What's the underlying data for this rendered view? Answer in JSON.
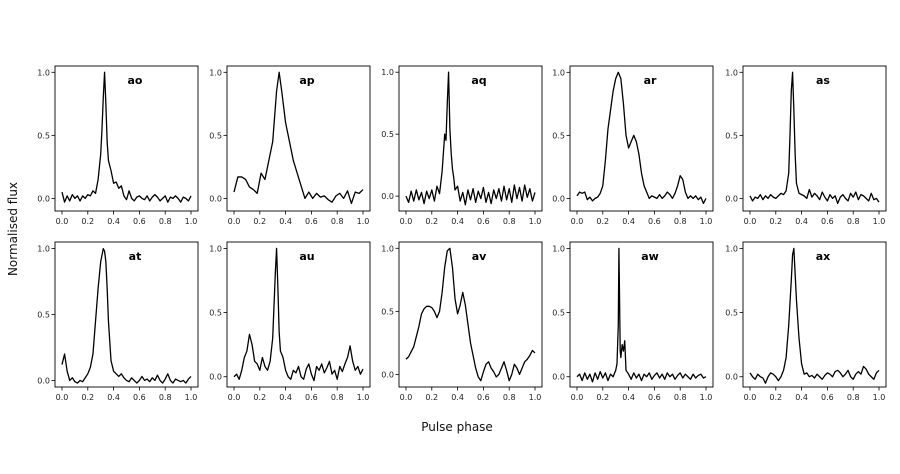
{
  "chart_data": {
    "type": "line",
    "xlabel": "Pulse phase",
    "ylabel": "Normalised flux",
    "xlim": [
      0,
      1
    ],
    "xticks": [
      "0.0",
      "0.2",
      "0.4",
      "0.6",
      "0.8",
      "1.0"
    ],
    "yticks": [
      "0.0",
      "0.5",
      "1.0"
    ],
    "grid": false,
    "line_color": "#000000",
    "panels": [
      {
        "label": "ao",
        "ylim": [
          -0.1,
          1.05
        ],
        "x": [
          0.0,
          0.02,
          0.04,
          0.06,
          0.08,
          0.1,
          0.12,
          0.14,
          0.16,
          0.18,
          0.2,
          0.22,
          0.24,
          0.26,
          0.28,
          0.3,
          0.31,
          0.32,
          0.33,
          0.34,
          0.35,
          0.36,
          0.38,
          0.4,
          0.42,
          0.44,
          0.46,
          0.48,
          0.5,
          0.52,
          0.54,
          0.56,
          0.58,
          0.6,
          0.62,
          0.64,
          0.66,
          0.68,
          0.7,
          0.72,
          0.74,
          0.76,
          0.78,
          0.8,
          0.82,
          0.84,
          0.86,
          0.88,
          0.9,
          0.92,
          0.94,
          0.96,
          0.98,
          1.0
        ],
        "y": [
          0.05,
          -0.03,
          0.02,
          -0.02,
          0.03,
          0.0,
          0.02,
          -0.02,
          0.02,
          0.0,
          0.03,
          0.02,
          0.06,
          0.04,
          0.15,
          0.35,
          0.55,
          0.8,
          1.0,
          0.75,
          0.45,
          0.3,
          0.22,
          0.12,
          0.13,
          0.08,
          0.1,
          0.02,
          -0.01,
          0.06,
          0.0,
          -0.02,
          0.01,
          0.02,
          0.0,
          -0.01,
          0.02,
          -0.02,
          0.01,
          0.03,
          0.01,
          -0.02,
          0.0,
          0.02,
          -0.03,
          0.01,
          0.0,
          0.02,
          0.0,
          -0.03,
          0.01,
          0.0,
          -0.02,
          0.02
        ]
      },
      {
        "label": "ap",
        "ylim": [
          -0.1,
          1.05
        ],
        "x": [
          0.0,
          0.03,
          0.06,
          0.09,
          0.12,
          0.15,
          0.18,
          0.21,
          0.24,
          0.27,
          0.3,
          0.33,
          0.35,
          0.37,
          0.4,
          0.43,
          0.46,
          0.49,
          0.52,
          0.55,
          0.58,
          0.61,
          0.64,
          0.67,
          0.7,
          0.73,
          0.76,
          0.79,
          0.82,
          0.85,
          0.88,
          0.91,
          0.94,
          0.97,
          1.0
        ],
        "y": [
          0.05,
          0.17,
          0.17,
          0.15,
          0.09,
          0.07,
          0.04,
          0.2,
          0.15,
          0.3,
          0.45,
          0.85,
          1.0,
          0.85,
          0.6,
          0.45,
          0.3,
          0.2,
          0.1,
          0.0,
          0.05,
          0.0,
          0.04,
          0.01,
          0.02,
          -0.01,
          -0.03,
          0.02,
          0.04,
          0.0,
          0.06,
          -0.04,
          0.05,
          0.04,
          0.07
        ]
      },
      {
        "label": "aq",
        "ylim": [
          -0.12,
          1.05
        ],
        "x": [
          0.0,
          0.02,
          0.04,
          0.06,
          0.08,
          0.1,
          0.12,
          0.14,
          0.16,
          0.18,
          0.2,
          0.22,
          0.24,
          0.26,
          0.28,
          0.3,
          0.31,
          0.32,
          0.33,
          0.34,
          0.35,
          0.36,
          0.37,
          0.38,
          0.4,
          0.42,
          0.44,
          0.46,
          0.48,
          0.5,
          0.52,
          0.54,
          0.56,
          0.58,
          0.6,
          0.62,
          0.64,
          0.66,
          0.68,
          0.7,
          0.72,
          0.74,
          0.76,
          0.78,
          0.8,
          0.82,
          0.84,
          0.86,
          0.88,
          0.9,
          0.92,
          0.94,
          0.96,
          0.98,
          1.0
        ],
        "y": [
          0.0,
          -0.05,
          0.04,
          -0.04,
          0.05,
          -0.03,
          0.03,
          -0.06,
          0.04,
          -0.02,
          0.05,
          -0.04,
          0.08,
          0.02,
          0.2,
          0.5,
          0.45,
          0.75,
          1.0,
          0.55,
          0.35,
          0.22,
          0.15,
          0.05,
          0.08,
          -0.04,
          0.03,
          -0.07,
          0.05,
          -0.03,
          0.06,
          -0.05,
          0.04,
          -0.02,
          0.07,
          -0.05,
          0.03,
          -0.06,
          0.05,
          -0.02,
          0.06,
          -0.04,
          0.08,
          -0.03,
          0.06,
          -0.05,
          0.09,
          -0.02,
          0.07,
          -0.04,
          0.09,
          -0.01,
          0.06,
          -0.04,
          0.03
        ]
      },
      {
        "label": "ar",
        "ylim": [
          -0.1,
          1.05
        ],
        "x": [
          0.0,
          0.02,
          0.04,
          0.06,
          0.08,
          0.1,
          0.12,
          0.14,
          0.16,
          0.18,
          0.2,
          0.22,
          0.24,
          0.26,
          0.28,
          0.3,
          0.32,
          0.34,
          0.36,
          0.38,
          0.4,
          0.42,
          0.44,
          0.46,
          0.48,
          0.5,
          0.52,
          0.54,
          0.56,
          0.58,
          0.6,
          0.62,
          0.64,
          0.66,
          0.68,
          0.7,
          0.72,
          0.74,
          0.76,
          0.78,
          0.8,
          0.82,
          0.84,
          0.86,
          0.88,
          0.9,
          0.92,
          0.94,
          0.96,
          0.98,
          1.0
        ],
        "y": [
          0.02,
          0.05,
          0.04,
          0.05,
          -0.01,
          0.01,
          -0.02,
          0.0,
          0.01,
          0.04,
          0.1,
          0.3,
          0.55,
          0.7,
          0.85,
          0.95,
          1.0,
          0.95,
          0.75,
          0.5,
          0.4,
          0.45,
          0.5,
          0.45,
          0.35,
          0.2,
          0.1,
          0.05,
          0.0,
          0.02,
          0.01,
          0.0,
          0.03,
          0.0,
          0.02,
          0.05,
          0.03,
          0.0,
          0.04,
          0.1,
          0.18,
          0.15,
          0.05,
          0.0,
          0.02,
          0.0,
          0.02,
          -0.01,
          0.01,
          -0.04,
          0.0
        ]
      },
      {
        "label": "as",
        "ylim": [
          -0.1,
          1.05
        ],
        "x": [
          0.0,
          0.02,
          0.04,
          0.06,
          0.08,
          0.1,
          0.12,
          0.14,
          0.16,
          0.18,
          0.2,
          0.22,
          0.24,
          0.26,
          0.28,
          0.3,
          0.31,
          0.32,
          0.33,
          0.34,
          0.35,
          0.36,
          0.38,
          0.4,
          0.42,
          0.44,
          0.46,
          0.48,
          0.5,
          0.52,
          0.54,
          0.56,
          0.58,
          0.6,
          0.62,
          0.64,
          0.66,
          0.68,
          0.7,
          0.72,
          0.74,
          0.76,
          0.78,
          0.8,
          0.82,
          0.84,
          0.86,
          0.88,
          0.9,
          0.92,
          0.94,
          0.96,
          0.98,
          1.0
        ],
        "y": [
          0.02,
          -0.02,
          0.01,
          0.0,
          0.03,
          -0.01,
          0.02,
          0.0,
          0.03,
          0.01,
          0.0,
          0.02,
          0.04,
          0.03,
          0.06,
          0.2,
          0.5,
          0.85,
          1.0,
          0.7,
          0.35,
          0.12,
          0.04,
          0.03,
          0.02,
          0.0,
          0.07,
          0.01,
          0.04,
          0.02,
          -0.01,
          0.05,
          0.01,
          -0.02,
          0.03,
          0.0,
          0.02,
          -0.04,
          0.01,
          0.03,
          0.0,
          -0.02,
          0.04,
          0.01,
          0.05,
          -0.01,
          0.03,
          0.02,
          0.0,
          -0.02,
          0.04,
          -0.01,
          0.0,
          -0.03
        ]
      },
      {
        "label": "at",
        "ylim": [
          -0.05,
          1.05
        ],
        "x": [
          0.0,
          0.02,
          0.04,
          0.06,
          0.08,
          0.1,
          0.12,
          0.14,
          0.16,
          0.18,
          0.2,
          0.22,
          0.24,
          0.26,
          0.28,
          0.3,
          0.32,
          0.33,
          0.34,
          0.35,
          0.36,
          0.38,
          0.4,
          0.42,
          0.44,
          0.46,
          0.48,
          0.5,
          0.52,
          0.54,
          0.56,
          0.58,
          0.6,
          0.62,
          0.64,
          0.66,
          0.68,
          0.7,
          0.72,
          0.74,
          0.76,
          0.78,
          0.8,
          0.82,
          0.84,
          0.86,
          0.88,
          0.9,
          0.92,
          0.94,
          0.96,
          0.98,
          1.0
        ],
        "y": [
          0.12,
          0.2,
          0.07,
          0.0,
          0.02,
          -0.01,
          -0.02,
          0.0,
          -0.01,
          0.02,
          0.05,
          0.1,
          0.2,
          0.45,
          0.7,
          0.9,
          1.0,
          0.98,
          0.9,
          0.7,
          0.45,
          0.15,
          0.07,
          0.05,
          0.03,
          0.05,
          0.02,
          0.0,
          -0.01,
          0.02,
          0.0,
          -0.02,
          0.0,
          0.03,
          0.0,
          0.01,
          -0.01,
          0.02,
          0.0,
          0.04,
          0.0,
          -0.02,
          0.01,
          0.05,
          0.0,
          -0.02,
          0.01,
          0.0,
          -0.01,
          0.0,
          -0.02,
          0.01,
          0.03
        ]
      },
      {
        "label": "au",
        "ylim": [
          -0.08,
          1.05
        ],
        "x": [
          0.0,
          0.02,
          0.04,
          0.06,
          0.08,
          0.1,
          0.12,
          0.14,
          0.16,
          0.18,
          0.2,
          0.22,
          0.24,
          0.26,
          0.28,
          0.3,
          0.31,
          0.32,
          0.33,
          0.34,
          0.35,
          0.36,
          0.38,
          0.4,
          0.42,
          0.44,
          0.46,
          0.48,
          0.5,
          0.52,
          0.54,
          0.56,
          0.58,
          0.6,
          0.62,
          0.64,
          0.66,
          0.68,
          0.7,
          0.72,
          0.74,
          0.76,
          0.78,
          0.8,
          0.82,
          0.84,
          0.86,
          0.88,
          0.9,
          0.92,
          0.94,
          0.96,
          0.98,
          1.0
        ],
        "y": [
          0.0,
          0.02,
          -0.02,
          0.05,
          0.15,
          0.2,
          0.33,
          0.25,
          0.12,
          0.1,
          0.05,
          0.15,
          0.08,
          0.05,
          0.12,
          0.3,
          0.55,
          0.8,
          1.0,
          0.7,
          0.35,
          0.2,
          0.15,
          0.05,
          0.0,
          -0.02,
          0.05,
          0.03,
          0.08,
          0.0,
          -0.02,
          0.06,
          0.1,
          0.02,
          -0.03,
          0.08,
          0.05,
          0.1,
          0.03,
          0.07,
          0.12,
          0.02,
          0.05,
          -0.02,
          0.08,
          0.04,
          0.1,
          0.15,
          0.24,
          0.12,
          0.05,
          0.08,
          0.02,
          0.06
        ]
      },
      {
        "label": "av",
        "ylim": [
          -0.1,
          1.05
        ],
        "x": [
          0.0,
          0.02,
          0.04,
          0.06,
          0.08,
          0.1,
          0.12,
          0.14,
          0.16,
          0.18,
          0.2,
          0.22,
          0.24,
          0.26,
          0.28,
          0.3,
          0.32,
          0.34,
          0.36,
          0.38,
          0.4,
          0.42,
          0.44,
          0.46,
          0.48,
          0.5,
          0.52,
          0.54,
          0.56,
          0.58,
          0.6,
          0.62,
          0.64,
          0.66,
          0.68,
          0.7,
          0.72,
          0.74,
          0.76,
          0.78,
          0.8,
          0.82,
          0.84,
          0.86,
          0.88,
          0.9,
          0.92,
          0.94,
          0.96,
          0.98,
          1.0
        ],
        "y": [
          0.12,
          0.14,
          0.18,
          0.22,
          0.3,
          0.38,
          0.48,
          0.52,
          0.54,
          0.54,
          0.53,
          0.5,
          0.45,
          0.5,
          0.65,
          0.85,
          0.98,
          1.0,
          0.85,
          0.6,
          0.48,
          0.55,
          0.65,
          0.55,
          0.4,
          0.25,
          0.15,
          0.05,
          -0.02,
          -0.05,
          0.02,
          0.08,
          0.1,
          0.05,
          0.02,
          -0.02,
          0.0,
          0.05,
          0.1,
          0.03,
          -0.05,
          0.0,
          0.08,
          0.05,
          0.0,
          0.05,
          0.1,
          0.12,
          0.15,
          0.19,
          0.17
        ]
      },
      {
        "label": "aw",
        "ylim": [
          -0.08,
          1.05
        ],
        "x": [
          0.0,
          0.02,
          0.04,
          0.06,
          0.08,
          0.1,
          0.12,
          0.14,
          0.16,
          0.18,
          0.2,
          0.22,
          0.24,
          0.26,
          0.28,
          0.3,
          0.31,
          0.32,
          0.325,
          0.33,
          0.335,
          0.34,
          0.35,
          0.36,
          0.37,
          0.38,
          0.4,
          0.42,
          0.44,
          0.46,
          0.48,
          0.5,
          0.52,
          0.54,
          0.56,
          0.58,
          0.6,
          0.62,
          0.64,
          0.66,
          0.68,
          0.7,
          0.72,
          0.74,
          0.76,
          0.78,
          0.8,
          0.82,
          0.84,
          0.86,
          0.88,
          0.9,
          0.92,
          0.94,
          0.96,
          0.98,
          1.0
        ],
        "y": [
          0.0,
          0.02,
          -0.03,
          0.03,
          -0.02,
          0.02,
          -0.04,
          0.03,
          -0.02,
          0.04,
          -0.01,
          0.03,
          -0.03,
          0.02,
          0.0,
          0.05,
          0.1,
          0.4,
          1.0,
          0.6,
          0.2,
          0.15,
          0.25,
          0.2,
          0.28,
          0.05,
          0.02,
          -0.02,
          0.03,
          -0.01,
          0.02,
          -0.03,
          0.02,
          0.0,
          0.03,
          -0.02,
          0.01,
          0.03,
          -0.01,
          0.02,
          -0.02,
          0.03,
          0.0,
          0.02,
          -0.02,
          0.01,
          0.03,
          -0.01,
          0.02,
          0.0,
          -0.02,
          0.02,
          -0.01,
          0.01,
          0.02,
          -0.01,
          0.0
        ]
      },
      {
        "label": "ax",
        "ylim": [
          -0.08,
          1.05
        ],
        "x": [
          0.0,
          0.02,
          0.04,
          0.06,
          0.08,
          0.1,
          0.12,
          0.14,
          0.16,
          0.18,
          0.2,
          0.22,
          0.24,
          0.26,
          0.28,
          0.3,
          0.32,
          0.33,
          0.34,
          0.35,
          0.36,
          0.38,
          0.4,
          0.42,
          0.44,
          0.46,
          0.48,
          0.5,
          0.52,
          0.54,
          0.56,
          0.58,
          0.6,
          0.62,
          0.64,
          0.66,
          0.68,
          0.7,
          0.72,
          0.74,
          0.76,
          0.78,
          0.8,
          0.82,
          0.84,
          0.86,
          0.88,
          0.9,
          0.92,
          0.94,
          0.96,
          0.98,
          1.0
        ],
        "y": [
          0.03,
          0.0,
          -0.02,
          0.02,
          0.0,
          -0.01,
          -0.05,
          0.0,
          0.03,
          0.02,
          0.0,
          -0.03,
          0.0,
          0.05,
          0.15,
          0.4,
          0.75,
          0.95,
          1.0,
          0.8,
          0.6,
          0.3,
          0.1,
          0.02,
          0.03,
          0.0,
          0.01,
          -0.01,
          0.02,
          0.0,
          -0.02,
          0.01,
          0.03,
          0.02,
          0.0,
          0.04,
          0.05,
          0.03,
          0.0,
          0.02,
          0.05,
          0.0,
          -0.02,
          0.02,
          0.04,
          0.02,
          0.08,
          0.06,
          0.02,
          0.0,
          -0.02,
          0.03,
          0.05
        ]
      }
    ]
  }
}
